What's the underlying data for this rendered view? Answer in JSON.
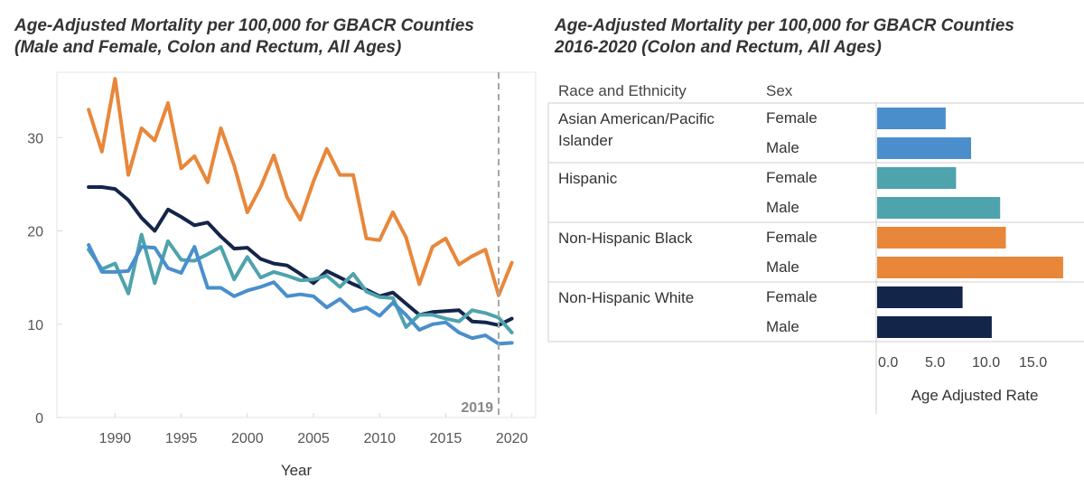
{
  "left_chart": {
    "title_line1": "Age-Adjusted Mortality per 100,000 for GBACR Counties",
    "title_line2": "(Male and Female, Colon and Rectum, All Ages)"
  },
  "right_chart": {
    "title_line1": "Age-Adjusted Mortality per 100,000 for GBACR Counties",
    "title_line2": "2016-2020 (Colon and Rectum, All Ages)"
  },
  "chart_data": [
    {
      "type": "line",
      "title": "Age-Adjusted Mortality per 100,000 for GBACR Counties (Male and Female, Colon and Rectum, All Ages)",
      "xlabel": "Year",
      "ylabel": "",
      "xlim": [
        1985.6,
        2021.8
      ],
      "ylim": [
        0,
        37
      ],
      "xticks": [
        1990,
        1995,
        2000,
        2005,
        2010,
        2015,
        2020
      ],
      "yticks": [
        0,
        10,
        20,
        30
      ],
      "grid": false,
      "annotation": {
        "x": 2019,
        "label": "2019"
      },
      "x": [
        1988,
        1989,
        1990,
        1991,
        1992,
        1993,
        1994,
        1995,
        1996,
        1997,
        1998,
        1999,
        2000,
        2001,
        2002,
        2003,
        2004,
        2005,
        2006,
        2007,
        2008,
        2009,
        2010,
        2011,
        2012,
        2013,
        2014,
        2015,
        2016,
        2017,
        2018,
        2019,
        2020
      ],
      "series": [
        {
          "name": "Non-Hispanic Black",
          "color": "#E8873A",
          "values": [
            33.0,
            28.5,
            36.3,
            26.0,
            31.0,
            29.7,
            33.7,
            26.7,
            28.0,
            25.2,
            31.0,
            27.0,
            22.0,
            24.7,
            28.1,
            23.6,
            21.2,
            25.3,
            28.8,
            26.0,
            26.0,
            19.2,
            19.0,
            22.0,
            19.3,
            14.3,
            18.3,
            19.2,
            16.4,
            17.3,
            18.0,
            13.1,
            16.6
          ]
        },
        {
          "name": "Non-Hispanic White",
          "color": "#14254A",
          "values": [
            24.7,
            24.7,
            24.5,
            23.3,
            21.4,
            20.0,
            22.3,
            21.5,
            20.6,
            20.9,
            19.4,
            18.1,
            18.2,
            17.0,
            16.5,
            16.3,
            15.4,
            14.4,
            15.7,
            15.0,
            14.3,
            13.7,
            13.0,
            13.4,
            12.2,
            11.0,
            11.3,
            11.4,
            11.5,
            10.3,
            10.2,
            9.9,
            10.6
          ]
        },
        {
          "name": "Hispanic",
          "color": "#4EA3AD",
          "values": [
            18.0,
            15.9,
            16.5,
            13.3,
            19.6,
            14.4,
            18.9,
            16.9,
            16.8,
            17.5,
            18.3,
            14.8,
            17.2,
            15.0,
            15.6,
            15.2,
            14.7,
            14.8,
            15.2,
            14.0,
            15.4,
            13.5,
            12.9,
            12.8,
            9.7,
            11.0,
            11.0,
            10.6,
            10.3,
            11.5,
            11.2,
            10.7,
            9.1
          ]
        },
        {
          "name": "Asian American/Pacific Islander",
          "color": "#4A8FCC",
          "values": [
            18.5,
            15.6,
            15.6,
            15.7,
            18.3,
            18.2,
            16.0,
            15.5,
            18.3,
            13.9,
            13.9,
            13.0,
            13.6,
            14.0,
            14.5,
            13.0,
            13.2,
            13.0,
            11.8,
            12.7,
            11.4,
            11.8,
            10.9,
            12.3,
            11.0,
            9.4,
            10.0,
            10.2,
            9.1,
            8.5,
            8.8,
            7.9,
            8.0
          ]
        }
      ]
    },
    {
      "type": "bar",
      "orientation": "horizontal",
      "title": "Age-Adjusted Mortality per 100,000 for GBACR Counties 2016-2020 (Colon and Rectum, All Ages)",
      "column_headers": [
        "Race and Ethnicity",
        "Sex"
      ],
      "xlabel": "Age Adjusted Rate",
      "xlim": [
        0,
        20
      ],
      "xticks": [
        0,
        5,
        10,
        15
      ],
      "xtick_labels": [
        "0.0",
        "5.0",
        "10.0",
        "15.0"
      ],
      "groups": [
        {
          "name": "Asian American/Pacific Islander",
          "name_lines": [
            "Asian American/Pacific",
            "Islander"
          ],
          "color": "#4A8FCC",
          "bars": [
            {
              "sex": "Female",
              "value": 7.3
            },
            {
              "sex": "Male",
              "value": 10.0
            }
          ]
        },
        {
          "name": "Hispanic",
          "name_lines": [
            "Hispanic"
          ],
          "color": "#4EA3AD",
          "bars": [
            {
              "sex": "Female",
              "value": 8.4
            },
            {
              "sex": "Male",
              "value": 13.1
            }
          ]
        },
        {
          "name": "Non-Hispanic Black",
          "name_lines": [
            "Non-Hispanic Black"
          ],
          "color": "#E8873A",
          "bars": [
            {
              "sex": "Female",
              "value": 13.7
            },
            {
              "sex": "Male",
              "value": 19.8
            }
          ]
        },
        {
          "name": "Non-Hispanic White",
          "name_lines": [
            "Non-Hispanic White"
          ],
          "color": "#14254A",
          "bars": [
            {
              "sex": "Female",
              "value": 9.1
            },
            {
              "sex": "Male",
              "value": 12.2
            }
          ]
        }
      ]
    }
  ]
}
